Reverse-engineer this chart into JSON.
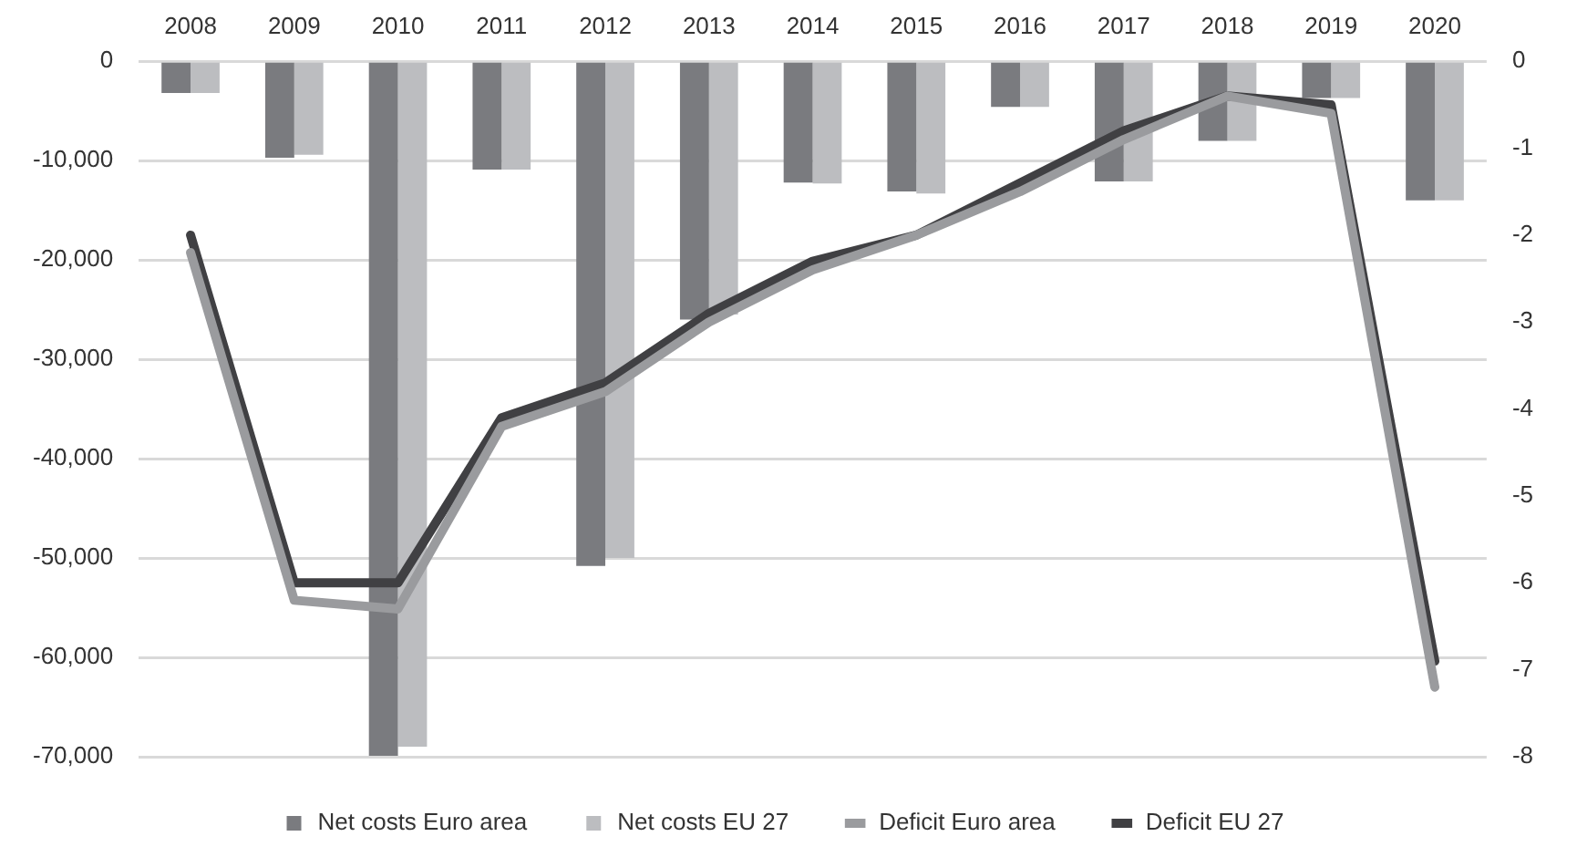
{
  "chart_data": {
    "type": "bar",
    "categories": [
      "2008",
      "2009",
      "2010",
      "2011",
      "2012",
      "2013",
      "2014",
      "2015",
      "2016",
      "2017",
      "2018",
      "2019",
      "2020"
    ],
    "series": [
      {
        "name": "Net costs Euro area",
        "color": "#7a7b7f",
        "values": [
          -3200,
          -9700,
          -69900,
          -10900,
          -50800,
          -26000,
          -12200,
          -13100,
          -4600,
          -12100,
          -8000,
          -3700,
          -14000
        ]
      },
      {
        "name": "Net costs EU 27",
        "color": "#bcbdc0",
        "values": [
          -3200,
          -9400,
          -69000,
          -10900,
          -50000,
          -25500,
          -12300,
          -13300,
          -4600,
          -12100,
          -8000,
          -3700,
          -14000
        ]
      },
      {
        "name": "Deficit Euro area",
        "type": "line",
        "axis": "y2",
        "color": "#9a9b9e",
        "values": [
          -2.2,
          -6.2,
          -6.3,
          -4.2,
          -3.8,
          -3.0,
          -2.4,
          -2.0,
          -1.5,
          -0.9,
          -0.4,
          -0.6,
          -7.2
        ]
      },
      {
        "name": "Deficit EU 27",
        "type": "line",
        "axis": "y2",
        "color": "#404043",
        "values": [
          -2.0,
          -6.0,
          -6.0,
          -4.1,
          -3.7,
          -2.9,
          -2.3,
          -2.0,
          -1.4,
          -0.8,
          -0.4,
          -0.5,
          -6.9
        ]
      }
    ],
    "ylim": [
      -70000,
      0
    ],
    "yticks": [
      {
        "value": -70000,
        "label": "-70,000"
      },
      {
        "value": -60000,
        "label": "-60,000"
      },
      {
        "value": -50000,
        "label": "-50,000"
      },
      {
        "value": -40000,
        "label": "-40,000"
      },
      {
        "value": -30000,
        "label": "-30,000"
      },
      {
        "value": -20000,
        "label": "-20,000"
      },
      {
        "value": -10000,
        "label": "-10,000"
      },
      0
    ],
    "y2lim": [
      -8,
      0
    ],
    "y2ticks": [
      -8,
      -7,
      -6,
      -5,
      -4,
      -3,
      -2,
      -1,
      0
    ],
    "grid": "y",
    "legend": "bottom",
    "marker": "none"
  }
}
